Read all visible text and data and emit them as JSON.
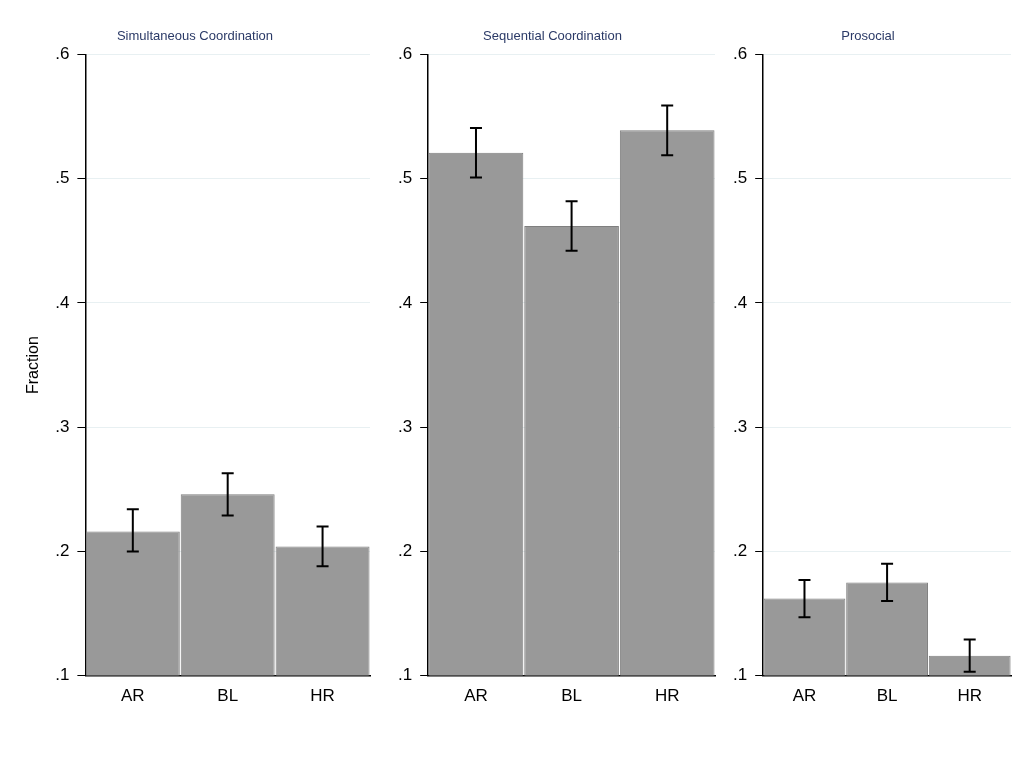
{
  "chart_data": [
    {
      "type": "bar",
      "title": "Simultaneous Coordination",
      "ylabel": "Fraction",
      "categories": [
        "AR",
        "BL",
        "HR"
      ],
      "values": [
        0.216,
        0.246,
        0.204
      ],
      "color": "#999999",
      "errors": [
        [
          0.2,
          0.234
        ],
        [
          0.229,
          0.263
        ],
        [
          0.188,
          0.22
        ]
      ],
      "ylim": [
        0.1,
        0.6
      ],
      "yticks": [
        {
          "value": 0.1,
          "label": ".1"
        },
        {
          "value": 0.2,
          "label": ".2"
        },
        {
          "value": 0.3,
          "label": ".3"
        },
        {
          "value": 0.4,
          "label": ".4"
        },
        {
          "value": 0.5,
          "label": ".5"
        },
        {
          "value": 0.6,
          "label": ".6"
        }
      ],
      "grid": "y",
      "legend": false
    },
    {
      "type": "bar",
      "title": "Sequential Coordination",
      "categories": [
        "AR",
        "BL",
        "HR"
      ],
      "values": [
        0.521,
        0.462,
        0.539
      ],
      "color": "#999999",
      "errors": [
        [
          0.501,
          0.541
        ],
        [
          0.442,
          0.482
        ],
        [
          0.519,
          0.559
        ]
      ],
      "ylim": [
        0.1,
        0.6
      ],
      "yticks": [
        {
          "value": 0.1,
          "label": ".1"
        },
        {
          "value": 0.2,
          "label": ".2"
        },
        {
          "value": 0.3,
          "label": ".3"
        },
        {
          "value": 0.4,
          "label": ".4"
        },
        {
          "value": 0.5,
          "label": ".5"
        },
        {
          "value": 0.6,
          "label": ".6"
        }
      ],
      "grid": "y",
      "legend": false
    },
    {
      "type": "bar",
      "title": "Prosocial",
      "categories": [
        "AR",
        "BL",
        "HR"
      ],
      "values": [
        0.162,
        0.175,
        0.116
      ],
      "color": "#999999",
      "errors": [
        [
          0.147,
          0.177
        ],
        [
          0.16,
          0.19
        ],
        [
          0.103,
          0.129
        ]
      ],
      "ylim": [
        0.1,
        0.6
      ],
      "yticks": [
        {
          "value": 0.1,
          "label": ".1"
        },
        {
          "value": 0.2,
          "label": ".2"
        },
        {
          "value": 0.3,
          "label": ".3"
        },
        {
          "value": 0.4,
          "label": ".4"
        },
        {
          "value": 0.5,
          "label": ".5"
        },
        {
          "value": 0.6,
          "label": ".6"
        }
      ],
      "grid": "y",
      "legend": false
    }
  ]
}
